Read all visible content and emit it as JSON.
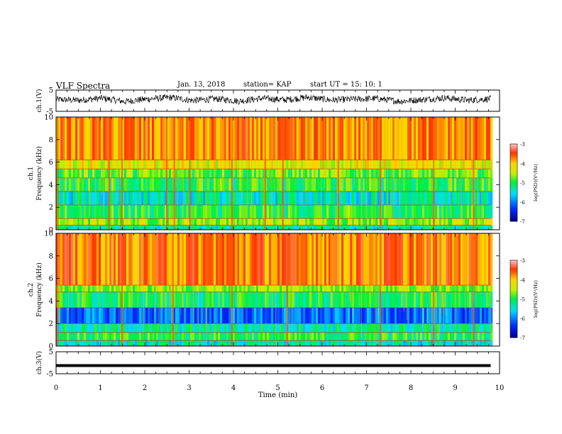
{
  "header": {
    "title": "VLF Spectra",
    "date": "Jan. 13, 2018",
    "station": "station= KAP",
    "start_ut": "start  UT =   15: 10: 1"
  },
  "chart_data": [
    {
      "type": "line",
      "panel": "ch1-waveform",
      "ylabel": "ch.1(V)",
      "ylim": [
        -5,
        5
      ],
      "yticks": [
        "5",
        "-5"
      ],
      "xlim": [
        0,
        10
      ],
      "description_level": 0.5,
      "series": [
        {
          "values": [
            0.6,
            0.2,
            1.2,
            -0.4,
            0.8,
            1.5,
            0.1,
            0.9,
            -0.2,
            1.1,
            0.4,
            1.6,
            0.3,
            0.7,
            1.0,
            -0.3,
            0.5,
            1.3,
            0.2,
            0.9
          ]
        }
      ]
    },
    {
      "type": "heatmap",
      "panel": "ch1-spectrogram",
      "ylabel": "ch.1\nFrequency (kHz)",
      "ylim": [
        0,
        10
      ],
      "yticks": [
        "0",
        "2",
        "4",
        "6",
        "8",
        "10"
      ],
      "xlim": [
        0,
        10
      ],
      "data_xmax": 9.8,
      "colorbar": {
        "label": "log(PSD)(V²/Hz)",
        "range": [
          -7,
          -3
        ],
        "ticks": [
          "-3",
          "-4",
          "-5",
          "-6",
          "-7"
        ]
      },
      "bands": [
        {
          "f0": 0.0,
          "f1": 0.4,
          "value": -5.3
        },
        {
          "f0": 0.4,
          "f1": 1.0,
          "value": -4.6
        },
        {
          "f0": 1.0,
          "f1": 2.2,
          "value": -5.0
        },
        {
          "f0": 2.2,
          "f1": 3.4,
          "value": -5.4
        },
        {
          "f0": 3.4,
          "f1": 4.6,
          "value": -5.0
        },
        {
          "f0": 4.6,
          "f1": 5.4,
          "value": -4.8
        },
        {
          "f0": 5.4,
          "f1": 6.2,
          "value": -4.3
        },
        {
          "f0": 6.2,
          "f1": 10.0,
          "value": -3.8
        }
      ],
      "impulse_times": [
        0.02,
        1.18,
        1.47,
        2.48,
        2.65,
        3.0,
        3.95,
        4.7,
        5.1,
        6.35,
        7.3,
        8.5,
        9.4
      ]
    },
    {
      "type": "heatmap",
      "panel": "ch2-spectrogram",
      "ylabel": "ch.2\nFrequency (kHz)",
      "ylim": [
        0,
        10
      ],
      "yticks": [
        "0",
        "2",
        "4",
        "6",
        "8",
        "10"
      ],
      "xlim": [
        0,
        10
      ],
      "data_xmax": 9.8,
      "colorbar": {
        "label": "log(PSD)(V²/Hz)",
        "range": [
          -7,
          -3
        ],
        "ticks": [
          "-3",
          "-4",
          "-5",
          "-6",
          "-7"
        ]
      },
      "bands": [
        {
          "f0": 0.0,
          "f1": 0.5,
          "value": -5.4
        },
        {
          "f0": 0.5,
          "f1": 1.2,
          "value": -5.0
        },
        {
          "f0": 1.2,
          "f1": 2.0,
          "value": -5.3
        },
        {
          "f0": 2.0,
          "f1": 3.4,
          "value": -6.1
        },
        {
          "f0": 3.4,
          "f1": 4.8,
          "value": -5.1
        },
        {
          "f0": 4.8,
          "f1": 5.4,
          "value": -4.6
        },
        {
          "f0": 5.4,
          "f1": 10.0,
          "value": -3.7
        }
      ],
      "impulse_times": [
        0.02,
        1.47,
        2.62,
        3.95,
        5.2,
        7.3,
        8.5,
        9.4
      ]
    },
    {
      "type": "line",
      "panel": "ch3-waveform",
      "ylabel": "ch.3(V)",
      "ylim": [
        -5,
        5
      ],
      "yticks": [
        "5",
        "-5"
      ],
      "xlim": [
        0,
        10
      ],
      "series": [
        {
          "values": [
            -1.3,
            -1.3
          ]
        }
      ]
    }
  ],
  "xaxis": {
    "label": "Time (min)",
    "ticks": [
      "0",
      "1",
      "2",
      "3",
      "4",
      "5",
      "6",
      "7",
      "8",
      "9",
      "10"
    ]
  }
}
